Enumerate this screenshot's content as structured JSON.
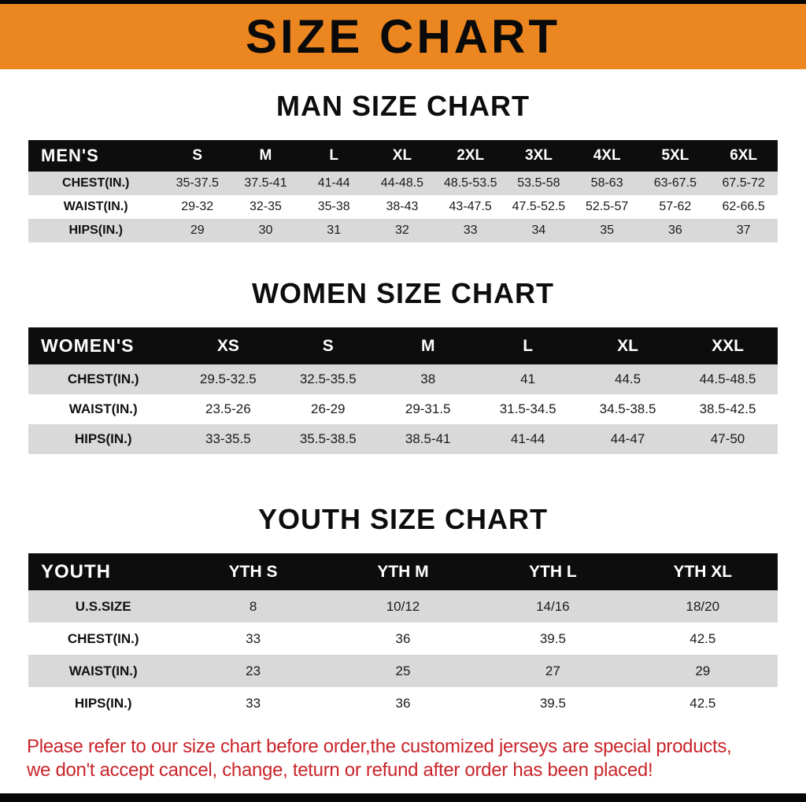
{
  "banner": {
    "title": "SIZE CHART"
  },
  "colors": {
    "banner_orange": "#EC8620",
    "header_black": "#0D0D0D",
    "row_gray": "#D9D9D9",
    "disclaimer_red": "#C9252B"
  },
  "chart_data": [
    {
      "type": "table",
      "title": "MAN SIZE CHART",
      "header_label": "MEN'S",
      "columns": [
        "S",
        "M",
        "L",
        "XL",
        "2XL",
        "3XL",
        "4XL",
        "5XL",
        "6XL"
      ],
      "rows": [
        {
          "label": "CHEST(IN.)",
          "values": [
            "35-37.5",
            "37.5-41",
            "41-44",
            "44-48.5",
            "48.5-53.5",
            "53.5-58",
            "58-63",
            "63-67.5",
            "67.5-72"
          ]
        },
        {
          "label": "WAIST(IN.)",
          "values": [
            "29-32",
            "32-35",
            "35-38",
            "38-43",
            "43-47.5",
            "47.5-52.5",
            "52.5-57",
            "57-62",
            "62-66.5"
          ]
        },
        {
          "label": "HIPS(IN.)",
          "values": [
            "29",
            "30",
            "31",
            "32",
            "33",
            "34",
            "35",
            "36",
            "37"
          ]
        }
      ]
    },
    {
      "type": "table",
      "title": "WOMEN SIZE CHART",
      "header_label": "WOMEN'S",
      "columns": [
        "XS",
        "S",
        "M",
        "L",
        "XL",
        "XXL"
      ],
      "rows": [
        {
          "label": "CHEST(IN.)",
          "values": [
            "29.5-32.5",
            "32.5-35.5",
            "38",
            "41",
            "44.5",
            "44.5-48.5"
          ]
        },
        {
          "label": "WAIST(IN.)",
          "values": [
            "23.5-26",
            "26-29",
            "29-31.5",
            "31.5-34.5",
            "34.5-38.5",
            "38.5-42.5"
          ]
        },
        {
          "label": "HIPS(IN.)",
          "values": [
            "33-35.5",
            "35.5-38.5",
            "38.5-41",
            "41-44",
            "44-47",
            "47-50"
          ]
        }
      ]
    },
    {
      "type": "table",
      "title": "YOUTH SIZE CHART",
      "header_label": "YOUTH",
      "columns": [
        "YTH S",
        "YTH M",
        "YTH L",
        "YTH XL"
      ],
      "rows": [
        {
          "label": "U.S.SIZE",
          "values": [
            "8",
            "10/12",
            "14/16",
            "18/20"
          ]
        },
        {
          "label": "CHEST(IN.)",
          "values": [
            "33",
            "36",
            "39.5",
            "42.5"
          ]
        },
        {
          "label": "WAIST(IN.)",
          "values": [
            "23",
            "25",
            "27",
            "29"
          ]
        },
        {
          "label": "HIPS(IN.)",
          "values": [
            "33",
            "36",
            "39.5",
            "42.5"
          ]
        }
      ]
    }
  ],
  "disclaimer": {
    "line1": "Please refer to our size chart before order,the customized jerseys are special products,",
    "line2": "we don't accept cancel, change, teturn or refund after order has been placed!"
  }
}
